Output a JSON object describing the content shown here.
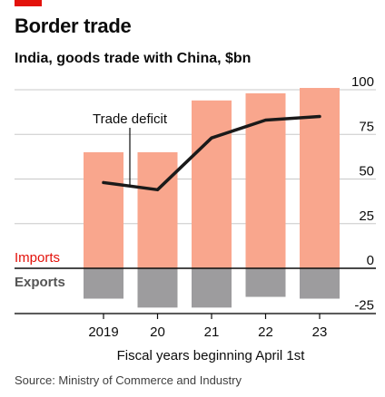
{
  "header": {
    "title": "Border trade",
    "subtitle": "India, goods trade with China, $bn"
  },
  "footer": {
    "source": "Source: Ministry of Commerce and Industry"
  },
  "colors": {
    "brand": "#e3120b",
    "imports": "#f9a68d",
    "exports": "#9d9c9e",
    "deficit_line": "#1a1a1a",
    "grid": "#c8c8c8",
    "zero_line": "#0c0c0c",
    "imports_label": "#e3120b",
    "exports_label": "#555555"
  },
  "chart_data": {
    "type": "bar",
    "categories": [
      "2019",
      "20",
      "21",
      "22",
      "23"
    ],
    "series": [
      {
        "name": "Imports",
        "values": [
          65,
          65,
          94,
          98,
          101
        ]
      },
      {
        "name": "Exports",
        "values": [
          -17,
          -22,
          -22,
          -16,
          -17
        ]
      },
      {
        "name": "Trade deficit",
        "type": "line",
        "values": [
          48,
          44,
          73,
          83,
          85
        ]
      }
    ],
    "yticks": [
      100,
      75,
      50,
      25,
      0,
      -25
    ],
    "ylim": [
      -25,
      100
    ],
    "xlabel": "Fiscal years beginning April 1st",
    "ylabel": "",
    "annotations": [
      {
        "text": "Trade deficit",
        "target_category": "2019"
      }
    ],
    "grid": true
  }
}
